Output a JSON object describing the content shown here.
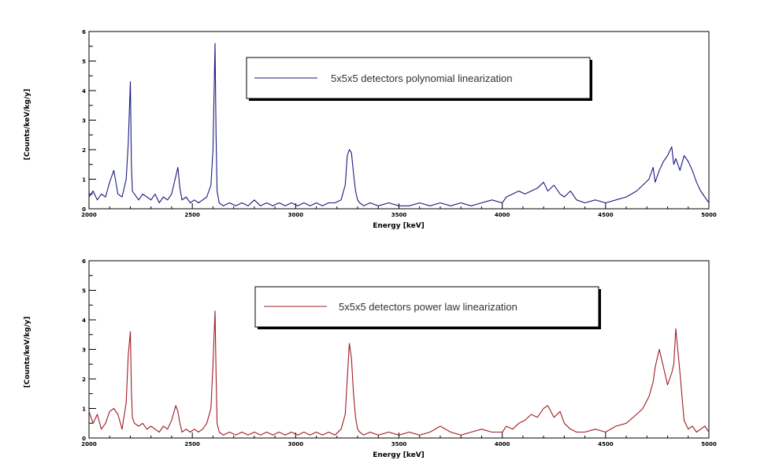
{
  "chart_data": [
    {
      "type": "line",
      "xlabel": "Energy [keV]",
      "ylabel": "[Counts/keV/kg/y]",
      "xlim": [
        2000,
        5000
      ],
      "ylim": [
        0,
        6
      ],
      "xticks": [
        "2000",
        "2500",
        "3000",
        "3500",
        "4000",
        "4500",
        "5000"
      ],
      "yticks": [
        "0",
        "1",
        "2",
        "3",
        "4",
        "5",
        "6"
      ],
      "legend": {
        "position": "top-right",
        "text": "5x5x5 detectors   polynomial linearization"
      },
      "grid": false,
      "series": [
        {
          "name": "5x5x5 detectors   polynomial linearization",
          "color": "#1a1a80",
          "x": [
            2000,
            2020,
            2040,
            2060,
            2080,
            2100,
            2120,
            2140,
            2160,
            2180,
            2190,
            2200,
            2205,
            2210,
            2220,
            2240,
            2260,
            2280,
            2300,
            2320,
            2340,
            2360,
            2380,
            2400,
            2420,
            2430,
            2440,
            2450,
            2470,
            2490,
            2510,
            2530,
            2550,
            2570,
            2590,
            2600,
            2610,
            2615,
            2620,
            2630,
            2650,
            2680,
            2710,
            2740,
            2770,
            2800,
            2830,
            2860,
            2890,
            2920,
            2950,
            2980,
            3010,
            3040,
            3070,
            3100,
            3130,
            3160,
            3190,
            3220,
            3240,
            3250,
            3260,
            3270,
            3280,
            3290,
            3300,
            3310,
            3330,
            3360,
            3400,
            3450,
            3500,
            3550,
            3600,
            3650,
            3700,
            3750,
            3800,
            3850,
            3900,
            3950,
            4000,
            4020,
            4050,
            4080,
            4110,
            4140,
            4170,
            4200,
            4220,
            4250,
            4280,
            4300,
            4330,
            4360,
            4400,
            4450,
            4500,
            4550,
            4600,
            4650,
            4680,
            4710,
            4730,
            4740,
            4760,
            4780,
            4800,
            4820,
            4830,
            4840,
            4860,
            4880,
            4900,
            4920,
            4940,
            4960,
            4980,
            5000
          ],
          "y": [
            0.4,
            0.6,
            0.3,
            0.5,
            0.4,
            0.9,
            1.3,
            0.5,
            0.4,
            1.0,
            2.2,
            4.3,
            1.5,
            0.6,
            0.5,
            0.3,
            0.5,
            0.4,
            0.3,
            0.5,
            0.2,
            0.4,
            0.3,
            0.5,
            1.1,
            1.4,
            0.7,
            0.3,
            0.4,
            0.2,
            0.3,
            0.2,
            0.3,
            0.4,
            0.8,
            2.0,
            5.6,
            2.5,
            0.6,
            0.2,
            0.1,
            0.2,
            0.1,
            0.2,
            0.1,
            0.3,
            0.1,
            0.2,
            0.1,
            0.2,
            0.1,
            0.2,
            0.1,
            0.2,
            0.1,
            0.2,
            0.1,
            0.2,
            0.2,
            0.3,
            0.8,
            1.8,
            2.0,
            1.9,
            1.2,
            0.6,
            0.3,
            0.2,
            0.1,
            0.2,
            0.1,
            0.2,
            0.1,
            0.1,
            0.2,
            0.1,
            0.2,
            0.1,
            0.2,
            0.1,
            0.2,
            0.3,
            0.2,
            0.4,
            0.5,
            0.6,
            0.5,
            0.6,
            0.7,
            0.9,
            0.6,
            0.8,
            0.5,
            0.4,
            0.6,
            0.3,
            0.2,
            0.3,
            0.2,
            0.3,
            0.4,
            0.6,
            0.8,
            1.0,
            1.4,
            0.9,
            1.3,
            1.6,
            1.8,
            2.1,
            1.5,
            1.7,
            1.3,
            1.8,
            1.6,
            1.3,
            0.9,
            0.6,
            0.4,
            0.2
          ]
        }
      ]
    },
    {
      "type": "line",
      "xlabel": "Energy [keV]",
      "ylabel": "[Counts/keV/kg/y]",
      "xlim": [
        2000,
        5000
      ],
      "ylim": [
        0,
        6
      ],
      "xticks": [
        "2000",
        "2500",
        "3000",
        "3500",
        "4000",
        "4500",
        "5000"
      ],
      "yticks": [
        "0",
        "1",
        "2",
        "3",
        "4",
        "5",
        "6"
      ],
      "legend": {
        "position": "top-right",
        "text": "5x5x5 detectors   power law linearization"
      },
      "grid": false,
      "series": [
        {
          "name": "5x5x5 detectors   power law linearization",
          "color": "#a01c24",
          "x": [
            2000,
            2020,
            2040,
            2060,
            2080,
            2100,
            2120,
            2140,
            2160,
            2180,
            2190,
            2200,
            2205,
            2210,
            2220,
            2240,
            2260,
            2280,
            2300,
            2320,
            2340,
            2360,
            2380,
            2400,
            2420,
            2430,
            2440,
            2450,
            2470,
            2490,
            2510,
            2530,
            2550,
            2570,
            2590,
            2600,
            2610,
            2615,
            2620,
            2630,
            2650,
            2680,
            2710,
            2740,
            2770,
            2800,
            2830,
            2860,
            2890,
            2920,
            2950,
            2980,
            3010,
            3040,
            3070,
            3100,
            3130,
            3160,
            3190,
            3220,
            3240,
            3250,
            3260,
            3270,
            3280,
            3290,
            3300,
            3310,
            3330,
            3360,
            3400,
            3450,
            3500,
            3550,
            3600,
            3650,
            3700,
            3750,
            3800,
            3850,
            3900,
            3950,
            4000,
            4020,
            4050,
            4080,
            4110,
            4140,
            4170,
            4200,
            4220,
            4250,
            4280,
            4300,
            4330,
            4360,
            4400,
            4450,
            4500,
            4550,
            4600,
            4650,
            4680,
            4710,
            4730,
            4740,
            4760,
            4780,
            4800,
            4820,
            4830,
            4840,
            4860,
            4880,
            4900,
            4920,
            4940,
            4960,
            4980,
            5000
          ],
          "y": [
            0.9,
            0.5,
            0.8,
            0.3,
            0.5,
            0.9,
            1.0,
            0.8,
            0.3,
            1.2,
            2.8,
            3.6,
            1.6,
            0.7,
            0.5,
            0.4,
            0.5,
            0.3,
            0.4,
            0.3,
            0.2,
            0.4,
            0.3,
            0.6,
            1.1,
            0.9,
            0.5,
            0.2,
            0.3,
            0.2,
            0.3,
            0.2,
            0.3,
            0.5,
            1.0,
            2.5,
            4.3,
            2.2,
            0.5,
            0.2,
            0.1,
            0.2,
            0.1,
            0.2,
            0.1,
            0.2,
            0.1,
            0.2,
            0.1,
            0.2,
            0.1,
            0.2,
            0.1,
            0.2,
            0.1,
            0.2,
            0.1,
            0.2,
            0.1,
            0.3,
            0.8,
            2.0,
            3.2,
            2.7,
            1.5,
            0.7,
            0.3,
            0.2,
            0.1,
            0.2,
            0.1,
            0.2,
            0.1,
            0.2,
            0.1,
            0.2,
            0.4,
            0.2,
            0.1,
            0.2,
            0.3,
            0.2,
            0.2,
            0.4,
            0.3,
            0.5,
            0.6,
            0.8,
            0.7,
            1.0,
            1.1,
            0.7,
            0.9,
            0.5,
            0.3,
            0.2,
            0.2,
            0.3,
            0.2,
            0.4,
            0.5,
            0.8,
            1.0,
            1.4,
            1.9,
            2.4,
            3.0,
            2.4,
            1.8,
            2.2,
            2.5,
            3.7,
            2.2,
            0.6,
            0.3,
            0.4,
            0.2,
            0.3,
            0.4,
            0.2
          ]
        }
      ]
    }
  ]
}
